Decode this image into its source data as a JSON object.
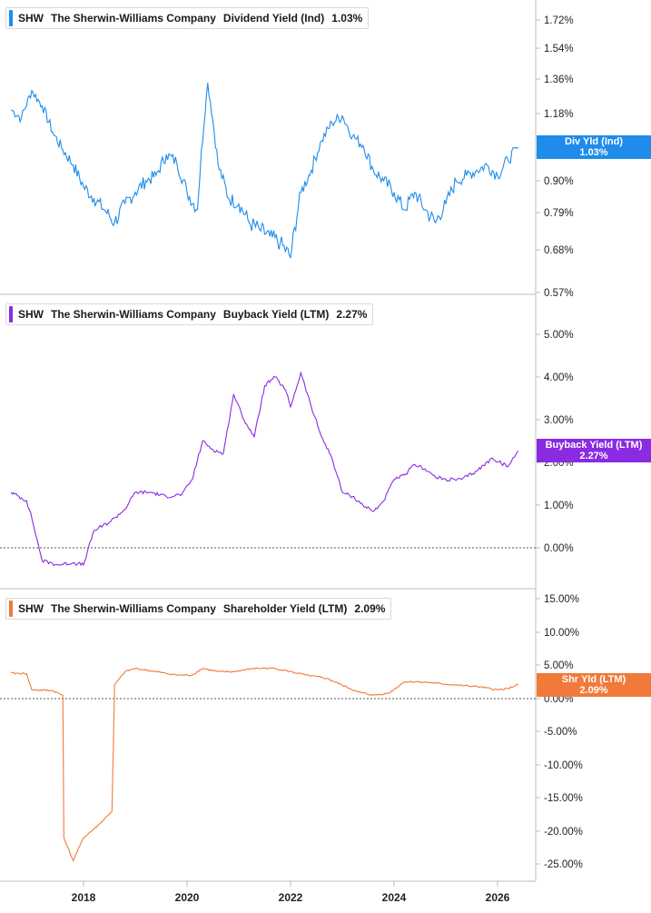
{
  "colors": {
    "div": "#1f8ceb",
    "buyback": "#8a2be2",
    "shr": "#f07a3a",
    "axis": "#bdbdbd",
    "zero_line": "#555555"
  },
  "panels": [
    {
      "ticker": "SHW",
      "company": "The Sherwin-Williams Company",
      "metric": "Dividend Yield (Ind)",
      "value": "1.03%",
      "tag_line1": "Div Yld (Ind)",
      "tag_line2": "1.03%"
    },
    {
      "ticker": "SHW",
      "company": "The Sherwin-Williams Company",
      "metric": "Buyback Yield (LTM)",
      "value": "2.27%",
      "tag_line1": "Buyback Yield (LTM)",
      "tag_line2": "2.27%"
    },
    {
      "ticker": "SHW",
      "company": "The Sherwin-Williams Company",
      "metric": "Shareholder Yield (LTM)",
      "value": "2.09%",
      "tag_line1": "Shr Yld (LTM)",
      "tag_line2": "2.09%"
    }
  ],
  "chart_data": [
    {
      "type": "line",
      "series": [
        {
          "name": "Dividend Yield (Ind)",
          "x": [
            2016.6,
            2016.8,
            2017.0,
            2017.2,
            2017.4,
            2017.6,
            2017.8,
            2018.0,
            2018.2,
            2018.4,
            2018.6,
            2018.8,
            2019.0,
            2019.2,
            2019.4,
            2019.6,
            2019.8,
            2020.0,
            2020.2,
            2020.4,
            2020.6,
            2020.8,
            2021.0,
            2021.2,
            2021.4,
            2021.6,
            2021.8,
            2022.0,
            2022.2,
            2022.4,
            2022.6,
            2022.8,
            2023.0,
            2023.2,
            2023.4,
            2023.6,
            2023.8,
            2024.0,
            2024.2,
            2024.4,
            2024.6,
            2024.8,
            2025.0,
            2025.2,
            2025.4,
            2025.6,
            2025.8,
            2026.0,
            2026.2,
            2026.4
          ],
          "values": [
            1.2,
            1.16,
            1.3,
            1.22,
            1.1,
            1.02,
            0.96,
            0.88,
            0.84,
            0.8,
            0.76,
            0.82,
            0.86,
            0.9,
            0.92,
            1.0,
            0.97,
            0.86,
            0.8,
            1.34,
            0.96,
            0.84,
            0.82,
            0.76,
            0.74,
            0.72,
            0.7,
            0.66,
            0.86,
            0.94,
            1.06,
            1.14,
            1.17,
            1.08,
            1.04,
            0.94,
            0.9,
            0.86,
            0.8,
            0.86,
            0.8,
            0.76,
            0.82,
            0.9,
            0.92,
            0.94,
            0.96,
            0.92,
            0.98,
            1.03
          ]
        }
      ],
      "yticks": [
        "1.72%",
        "1.54%",
        "1.36%",
        "1.18%",
        "1.00%",
        "0.90%",
        "0.79%",
        "0.68%",
        "0.57%"
      ]
    },
    {
      "type": "line",
      "series": [
        {
          "name": "Buyback Yield (LTM)",
          "x": [
            2016.6,
            2016.9,
            2017.0,
            2017.2,
            2017.5,
            2017.8,
            2018.0,
            2018.2,
            2018.5,
            2018.6,
            2018.8,
            2019.0,
            2019.3,
            2019.6,
            2019.9,
            2020.1,
            2020.3,
            2020.5,
            2020.7,
            2020.9,
            2021.1,
            2021.3,
            2021.5,
            2021.7,
            2021.9,
            2022.0,
            2022.2,
            2022.4,
            2022.6,
            2022.8,
            2023.0,
            2023.2,
            2023.4,
            2023.6,
            2023.8,
            2024.0,
            2024.2,
            2024.4,
            2024.6,
            2024.8,
            2025.0,
            2025.3,
            2025.6,
            2025.9,
            2026.2,
            2026.4
          ],
          "values": [
            1.3,
            1.1,
            0.7,
            -0.3,
            -0.4,
            -0.35,
            -0.4,
            0.4,
            0.6,
            0.7,
            0.9,
            1.3,
            1.3,
            1.2,
            1.25,
            1.6,
            2.5,
            2.3,
            2.2,
            3.6,
            3.0,
            2.6,
            3.8,
            4.0,
            3.7,
            3.3,
            4.1,
            3.3,
            2.6,
            2.1,
            1.3,
            1.2,
            1.0,
            0.85,
            1.1,
            1.6,
            1.7,
            1.95,
            1.85,
            1.65,
            1.6,
            1.6,
            1.8,
            2.1,
            1.9,
            2.27
          ]
        }
      ],
      "yticks": [
        "5.00%",
        "4.00%",
        "3.00%",
        "2.00%",
        "1.00%",
        "0.00%"
      ]
    },
    {
      "type": "line",
      "series": [
        {
          "name": "Shareholder Yield (LTM)",
          "x": [
            2016.6,
            2016.9,
            2017.0,
            2017.4,
            2017.6,
            2017.62,
            2017.8,
            2018.0,
            2018.3,
            2018.55,
            2018.6,
            2018.8,
            2019.0,
            2019.4,
            2019.8,
            2020.1,
            2020.3,
            2020.6,
            2020.9,
            2021.3,
            2021.7,
            2022.0,
            2022.3,
            2022.7,
            2023.0,
            2023.3,
            2023.6,
            2023.9,
            2024.2,
            2024.5,
            2024.8,
            2025.2,
            2025.6,
            2026.0,
            2026.2,
            2026.4
          ],
          "values": [
            3.8,
            3.7,
            1.3,
            1.2,
            0.5,
            -21.0,
            -24.5,
            -21.0,
            -19.0,
            -17.0,
            2.0,
            4.0,
            4.5,
            4.0,
            3.5,
            3.5,
            4.5,
            4.0,
            4.0,
            4.5,
            4.5,
            4.0,
            3.5,
            3.0,
            2.0,
            1.0,
            0.5,
            0.8,
            2.5,
            2.5,
            2.3,
            2.0,
            1.8,
            1.3,
            1.5,
            2.09
          ]
        }
      ],
      "yticks": [
        "15.00%",
        "10.00%",
        "5.00%",
        "0.00%",
        "-5.00%",
        "-10.00%",
        "-15.00%",
        "-20.00%",
        "-25.00%"
      ]
    }
  ],
  "xaxis": {
    "ticks": [
      "2018",
      "2020",
      "2022",
      "2024",
      "2026"
    ]
  }
}
